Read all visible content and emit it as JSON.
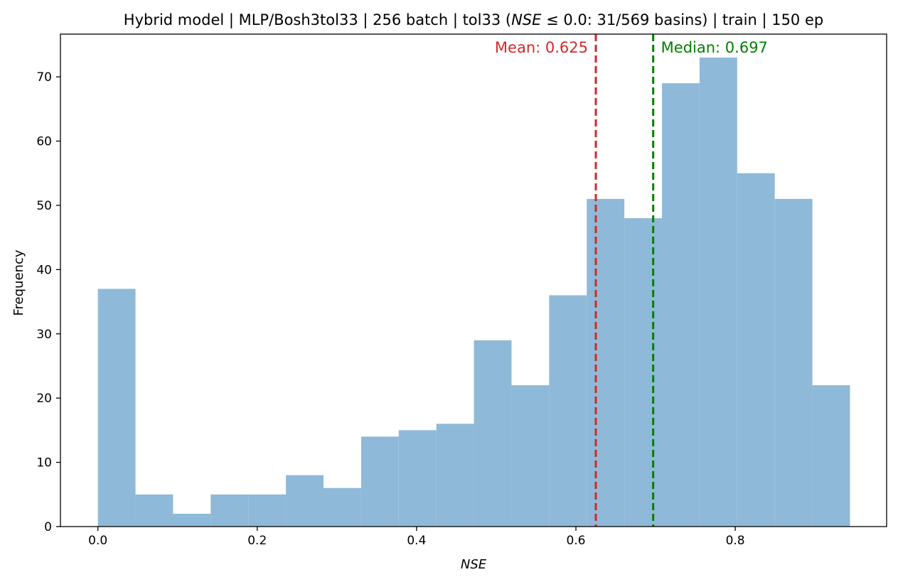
{
  "chart_data": {
    "type": "bar",
    "title_parts": {
      "prefix": "Hybrid model | MLP/Bosh3tol33 | 256 batch | tol33 (",
      "italic": "NSE",
      "middle": " ≤ 0.0: 31/569 basins) | train | 150 ep"
    },
    "xlabel": "NSE",
    "ylabel": "Frequency",
    "xlim": [
      -0.047,
      0.99
    ],
    "ylim": [
      0,
      76.65
    ],
    "x_ticks": [
      0.0,
      0.2,
      0.4,
      0.6,
      0.8
    ],
    "x_tick_labels": [
      "0.0",
      "0.2",
      "0.4",
      "0.6",
      "0.8"
    ],
    "y_ticks": [
      0,
      10,
      20,
      30,
      40,
      50,
      60,
      70
    ],
    "y_tick_labels": [
      "0",
      "10",
      "20",
      "30",
      "40",
      "50",
      "60",
      "70"
    ],
    "bin_edges": [
      0.0,
      0.0472,
      0.0944,
      0.1416,
      0.1888,
      0.236,
      0.2832,
      0.3304,
      0.3776,
      0.4248,
      0.472,
      0.5192,
      0.5664,
      0.6136,
      0.6608,
      0.708,
      0.7552,
      0.8024,
      0.8496,
      0.8968,
      0.944
    ],
    "counts": [
      37,
      5,
      2,
      5,
      5,
      8,
      6,
      14,
      15,
      16,
      29,
      22,
      36,
      51,
      48,
      69,
      73,
      55,
      51,
      22
    ],
    "bar_color": "#8fb9d8",
    "mean": {
      "value": 0.625,
      "label": "Mean: 0.625",
      "color": "#d62728"
    },
    "median": {
      "value": 0.697,
      "label": "Median: 0.697",
      "color": "#008000"
    },
    "grid": false,
    "legend": "none"
  }
}
